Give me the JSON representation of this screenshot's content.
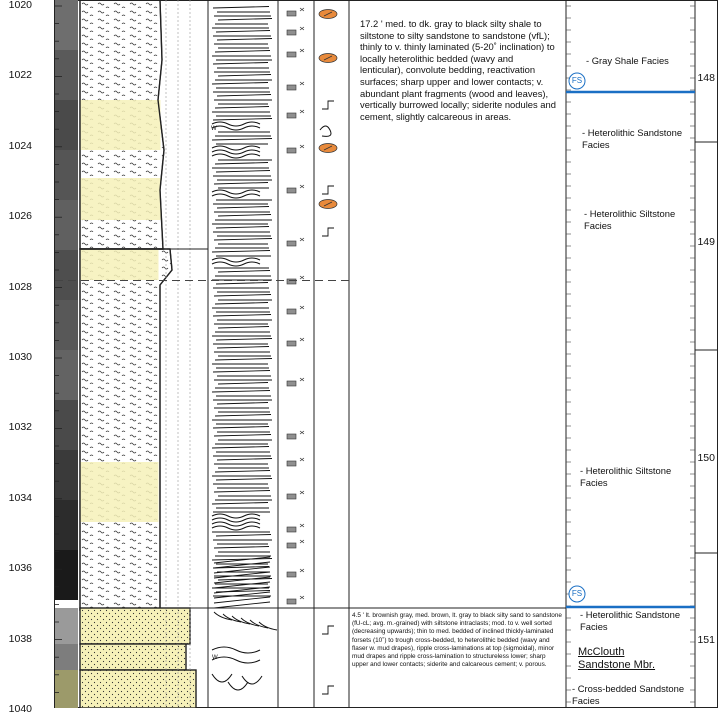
{
  "log": {
    "depth_labels": [
      "1020",
      "1022",
      "1024",
      "1026",
      "1028",
      "1030",
      "1032",
      "1034",
      "1036",
      "1038",
      "1040"
    ],
    "core_box_labels": [
      "148",
      "149",
      "150",
      "151"
    ],
    "description_upper": "17.2 ' med. to dk. gray to black silty shale to siltstone to silty sandstone to sandstone (vfL); thinly to v. thinly laminated (5-20˚ inclination) to locally heterolithic bedded (wavy and lenticular), convolute bedding, reactivation surfaces; sharp upper and lower contacts; v. abundant plant fragments (wood and leaves), vertically burrowed locally; siderite nodules and cement, slightly calcareous in areas.",
    "description_lower": "4.5 ' lt. brownish gray, med. brown, lt. gray to black silty sand to sandstone (fU-cL; avg. m.-grained) with siltstone intraclasts; mod. to v. well sorted (decreasing upwards); thin to med. bedded of inclined thickly-laminated forsets (10˚) to trough cross-bedded, to heterolithic bedded (wavy and flaser w. mud drapes), ripple cross-laminations at top (sigmoidal), minor mud drapes and ripple cross-lamination to structureless lower; sharp upper and lower contacts; siderite and calcareous cement; v. porous.",
    "facies": [
      {
        "label": "- Gray Shale Facies"
      },
      {
        "label": "- Heterolithic Sandstone Facies"
      },
      {
        "label": "- Heterolithic Siltstone Facies"
      },
      {
        "label": "- Heterolithic Siltstone Facies"
      },
      {
        "label": "- Heterolithic Sandstone Facies"
      },
      {
        "label": "- Cross-bedded Sandstone Facies"
      }
    ],
    "surface_labels": [
      "FS",
      "FS"
    ],
    "member_label": "McClouth Sandstone Mbr.",
    "structure_marks": [
      "W",
      "W"
    ],
    "colors": {
      "sandstone_fill": "#f6f1b9",
      "surface_line": "#1a6fc4",
      "siderite_fill": "#e88a3c"
    }
  }
}
